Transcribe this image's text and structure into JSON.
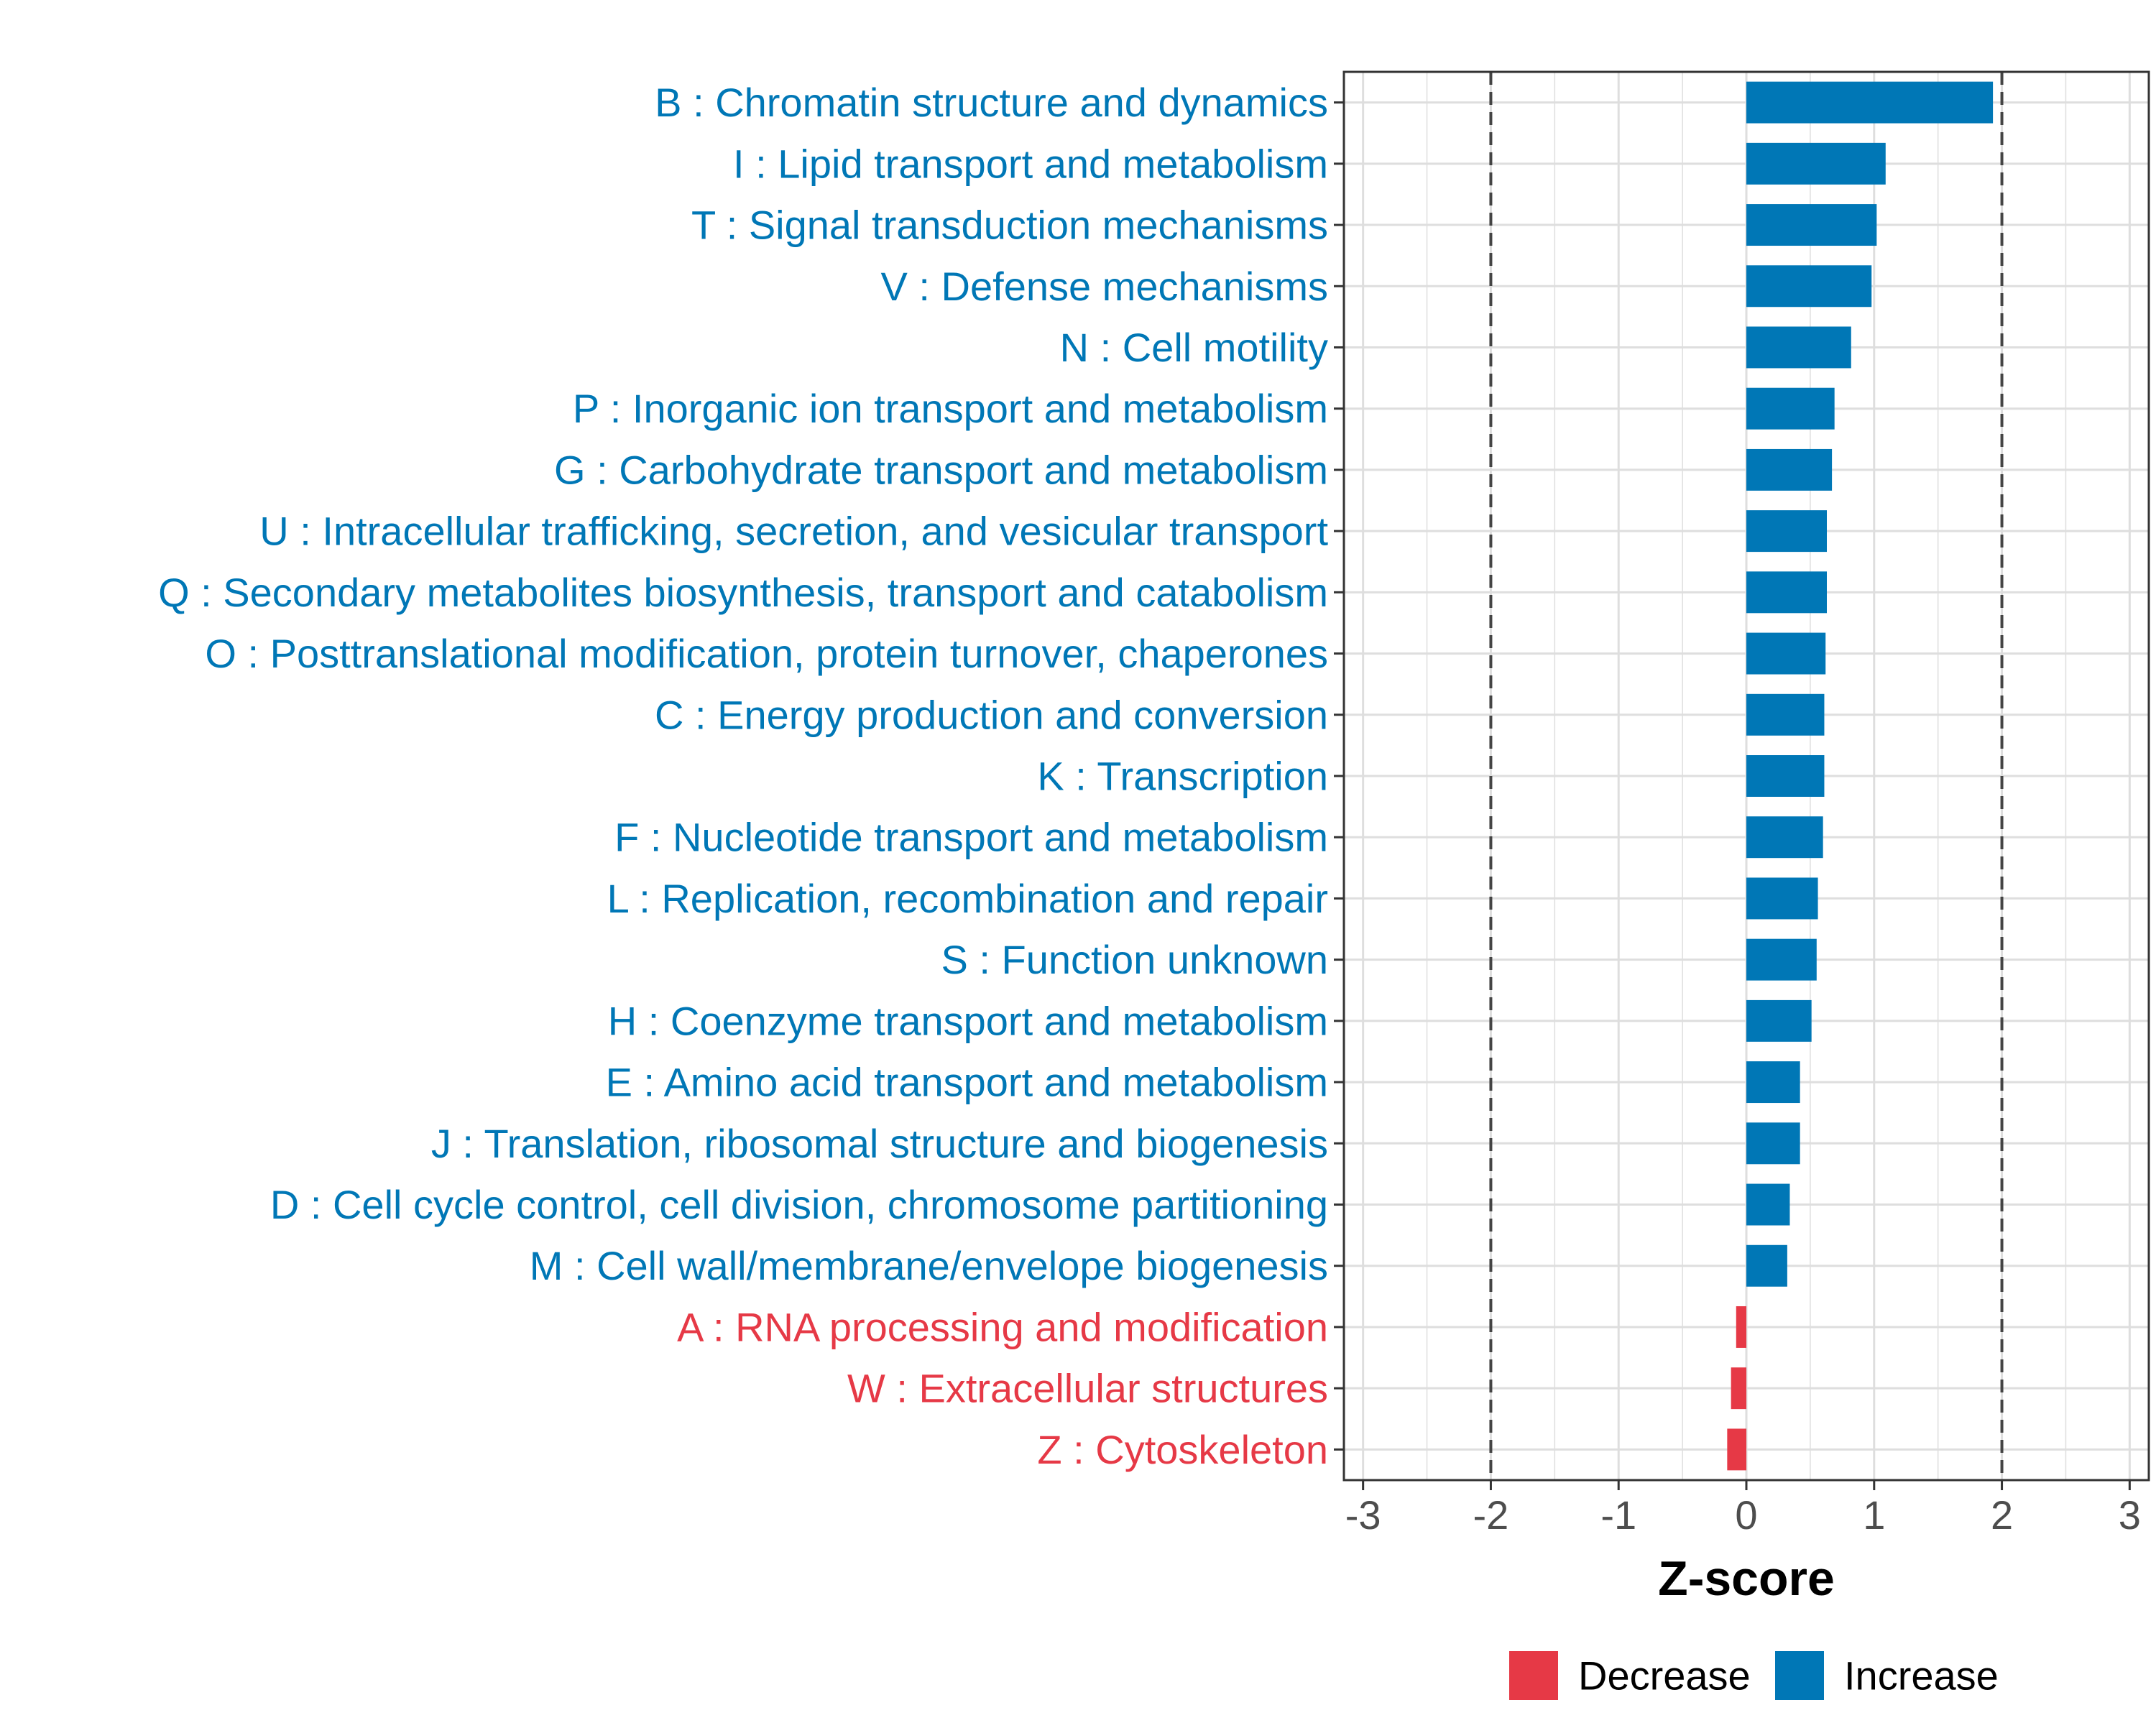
{
  "chart_data": {
    "type": "bar",
    "orientation": "horizontal",
    "title": "",
    "xlabel": "Z-score",
    "ylabel": "",
    "xlim": [
      -3.15,
      3.15
    ],
    "x_ticks": [
      -3,
      -2,
      -1,
      0,
      1,
      2,
      3
    ],
    "x_tick_labels": [
      "-3",
      "-2",
      "-1",
      "0",
      "1",
      "2",
      "3"
    ],
    "reference_lines": [
      -2,
      2
    ],
    "grid": true,
    "categories": [
      "B : Chromatin structure and dynamics",
      "I : Lipid transport and metabolism",
      "T : Signal transduction mechanisms",
      "V : Defense mechanisms",
      "N : Cell motility",
      "P : Inorganic ion transport and metabolism",
      "G : Carbohydrate transport and metabolism",
      "U : Intracellular trafficking, secretion, and vesicular transport",
      "Q : Secondary metabolites biosynthesis, transport and catabolism",
      "O : Posttranslational modification, protein turnover, chaperones",
      "C : Energy production and conversion",
      "K : Transcription",
      "F : Nucleotide transport and metabolism",
      "L : Replication, recombination and repair",
      "S : Function unknown",
      "H : Coenzyme transport and metabolism",
      "E : Amino acid transport and metabolism",
      "J : Translation, ribosomal structure and biogenesis",
      "D : Cell cycle control, cell division, chromosome partitioning",
      "M : Cell wall/membrane/envelope biogenesis",
      "A : RNA processing and modification",
      "W : Extracellular structures",
      "Z : Cytoskeleton"
    ],
    "values": [
      1.93,
      1.09,
      1.02,
      0.98,
      0.82,
      0.69,
      0.67,
      0.63,
      0.63,
      0.62,
      0.61,
      0.61,
      0.6,
      0.56,
      0.55,
      0.51,
      0.42,
      0.42,
      0.34,
      0.32,
      -0.08,
      -0.12,
      -0.15
    ],
    "groups": [
      "Increase",
      "Increase",
      "Increase",
      "Increase",
      "Increase",
      "Increase",
      "Increase",
      "Increase",
      "Increase",
      "Increase",
      "Increase",
      "Increase",
      "Increase",
      "Increase",
      "Increase",
      "Increase",
      "Increase",
      "Increase",
      "Increase",
      "Increase",
      "Decrease",
      "Decrease",
      "Decrease"
    ],
    "legend": {
      "placement": "bottom",
      "entries": [
        {
          "label": "Decrease",
          "color": "#e63946"
        },
        {
          "label": "Increase",
          "color": "#0077b6"
        }
      ]
    },
    "colors": {
      "Increase": "#0077b6",
      "Decrease": "#e63946",
      "grid": "#dedede",
      "axis": "#333333",
      "reference_line": "#444444",
      "tick_text": "#4d4d4d",
      "axis_title": "#000000"
    }
  }
}
